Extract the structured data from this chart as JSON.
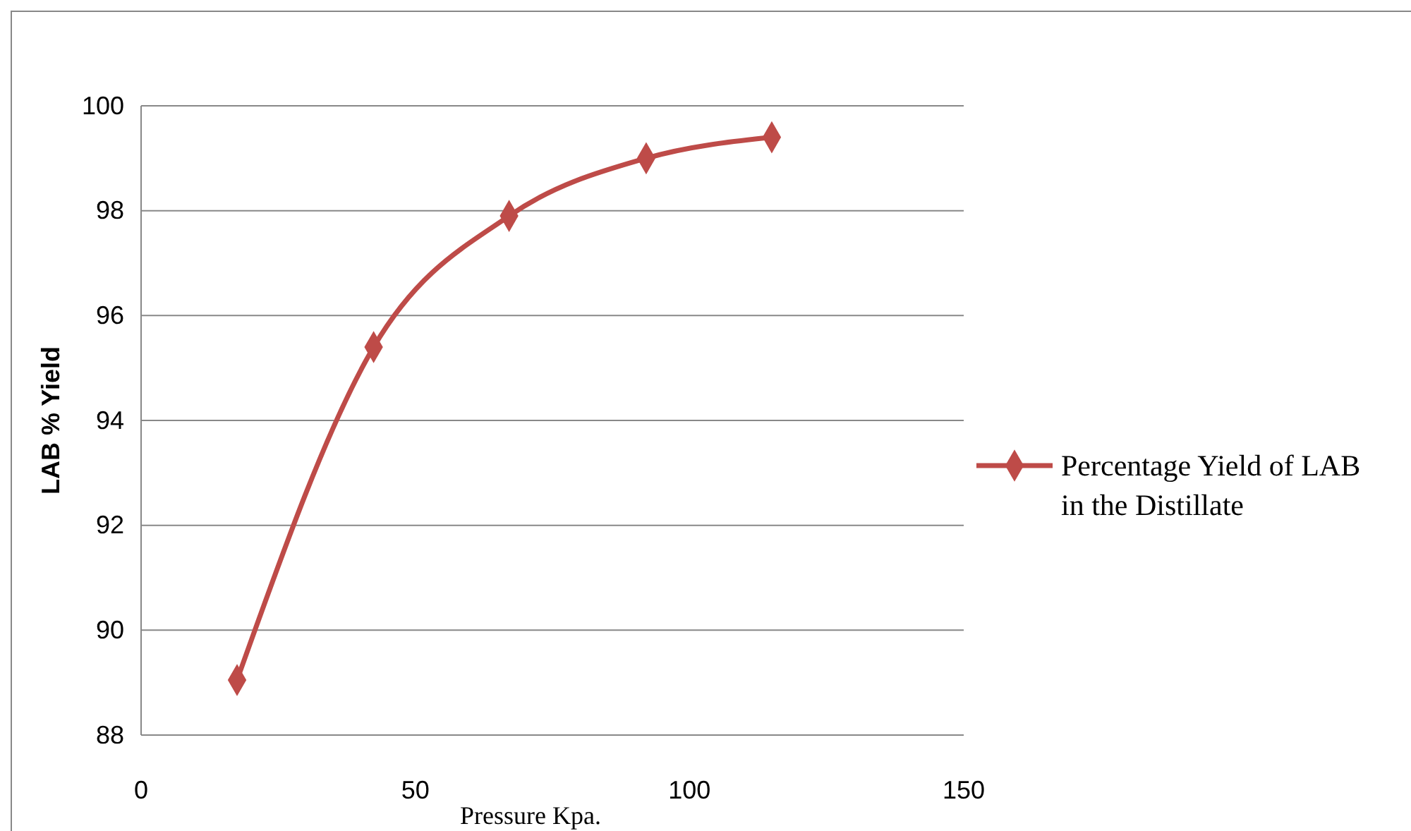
{
  "chart_data": {
    "type": "line",
    "xlabel": "Pressure Kpa.",
    "ylabel": "LAB % Yield",
    "x": [
      17.5,
      42.4,
      67.1,
      92.1,
      115
    ],
    "series": [
      {
        "name": "Percentage Yield of LAB in the Distillate",
        "color": "#be4b48",
        "values": [
          89.05,
          95.4,
          97.9,
          99.0,
          99.4
        ]
      }
    ],
    "xlim": [
      0,
      150
    ],
    "xticks": [
      0,
      50,
      100,
      150
    ],
    "ylim": [
      88,
      100
    ],
    "yticks": [
      88,
      90,
      92,
      94,
      96,
      98,
      100
    ],
    "grid": "y",
    "legend": "right",
    "marker": "diamond",
    "line_style": "solid"
  }
}
